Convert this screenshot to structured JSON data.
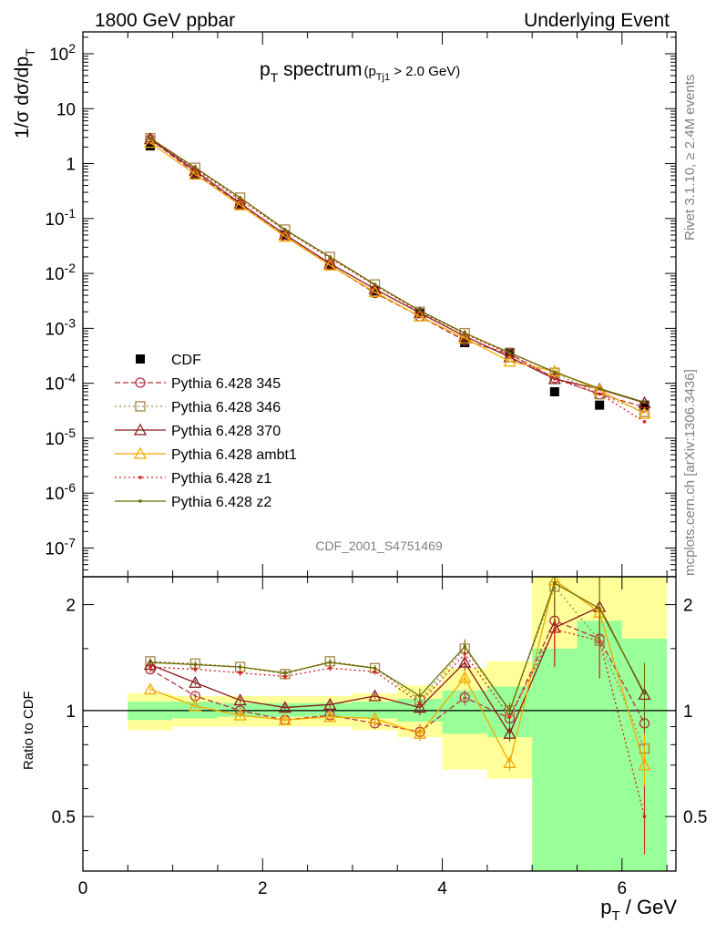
{
  "header": {
    "left": "1800 GeV ppbar",
    "right": "Underlying Event"
  },
  "title": {
    "main": "p",
    "main_sub": "T",
    "main_rest": " spectrum",
    "cut_prefix": "(p",
    "cut_sub": "Tj1",
    "cut_rest": " > 2.0 GeV)"
  },
  "side": {
    "rivet": "Rivet 3.1.10, ≥ 2.4M events",
    "mcplots": "mcplots.cern.ch [arXiv:1306.3436]"
  },
  "analysis_id": "CDF_2001_S4751469",
  "colors": {
    "band_outer": "#ffff99",
    "band_inner": "#99ff99"
  },
  "chart_data": [
    {
      "type": "scatter",
      "ylabel": "1/σ dσ/dp",
      "ylabel_sub": "T",
      "yscale": "log",
      "xlim": [
        0,
        6.6
      ],
      "ylim": [
        3e-08,
        250
      ],
      "y_ticks": [
        {
          "label": "10",
          "exp": "-7"
        },
        {
          "label": "10",
          "exp": "-6"
        },
        {
          "label": "10",
          "exp": "-5"
        },
        {
          "label": "10",
          "exp": "-4"
        },
        {
          "label": "10",
          "exp": "-3"
        },
        {
          "label": "10",
          "exp": "-2"
        },
        {
          "label": "10",
          "exp": "-1"
        },
        {
          "label": "1",
          "exp": ""
        },
        {
          "label": "10",
          "exp": ""
        },
        {
          "label": "10",
          "exp": "2"
        }
      ],
      "x": [
        0.75,
        1.25,
        1.75,
        2.25,
        2.75,
        3.25,
        3.75,
        4.25,
        4.75,
        5.25,
        5.75,
        6.25
      ],
      "series": [
        {
          "name": "CDF",
          "color": "#000000",
          "style": "data",
          "values": [
            2.1,
            0.62,
            0.18,
            0.05,
            0.0145,
            0.0048,
            0.0019,
            0.00055,
            0.00036,
            7e-05,
            4e-05,
            4e-05
          ]
        },
        {
          "name": "Pythia 6.428 345",
          "color": "#b2323e",
          "style": "dash",
          "marker": "circle",
          "values": [
            2.75,
            0.68,
            0.18,
            0.047,
            0.0142,
            0.0044,
            0.00165,
            0.0006,
            0.00034,
            0.000125,
            6.3e-05,
            3.7e-05
          ]
        },
        {
          "name": "Pythia 6.428 346",
          "color": "#a58547",
          "style": "dot",
          "marker": "square",
          "values": [
            2.9,
            0.84,
            0.24,
            0.063,
            0.02,
            0.0063,
            0.002,
            0.00082,
            0.00036,
            0.000155,
            6.3e-05,
            3e-05
          ]
        },
        {
          "name": "Pythia 6.428 370",
          "color": "#8b1a1a",
          "style": "solid",
          "marker": "triangle",
          "values": [
            2.8,
            0.74,
            0.19,
            0.051,
            0.0152,
            0.0052,
            0.0019,
            0.00072,
            0.0003,
            0.00012,
            7.8e-05,
            4.4e-05
          ]
        },
        {
          "name": "Pythia 6.428 ambt1",
          "color": "#f4a800",
          "style": "solid",
          "marker": "triangle",
          "values": [
            2.4,
            0.64,
            0.175,
            0.047,
            0.014,
            0.0046,
            0.00165,
            0.00066,
            0.00025,
            0.000165,
            7.5e-05,
            2.8e-05
          ]
        },
        {
          "name": "Pythia 6.428 z1",
          "color": "#d62020",
          "style": "dot",
          "marker": "dot",
          "values": [
            2.8,
            0.8,
            0.22,
            0.061,
            0.019,
            0.0061,
            0.002,
            0.0008,
            0.00034,
            0.00012,
            6.4e-05,
            2e-05
          ]
        },
        {
          "name": "Pythia 6.428 z2",
          "color": "#6b6b00",
          "style": "solid",
          "marker": "dot",
          "values": [
            2.9,
            0.84,
            0.24,
            0.063,
            0.02,
            0.0063,
            0.0021,
            0.00082,
            0.00036,
            0.00016,
            8e-05,
            4.5e-05
          ]
        }
      ]
    },
    {
      "type": "line",
      "ylabel": "Ratio to CDF",
      "xlabel": "p",
      "xlabel_sub": "T",
      "xlabel_rest": " / GeV",
      "yscale": "log",
      "xlim": [
        0,
        6.6
      ],
      "ylim": [
        0.35,
        2.4
      ],
      "x_ticks": [
        "0",
        "2",
        "4",
        "6"
      ],
      "y_ticks": [
        "0.5",
        "1",
        "2"
      ],
      "x": [
        0.75,
        1.25,
        1.75,
        2.25,
        2.75,
        3.25,
        3.75,
        4.25,
        4.75,
        5.25,
        5.75,
        6.25
      ],
      "bands": {
        "edges": [
          0.5,
          1.0,
          1.5,
          2.0,
          2.5,
          3.0,
          3.5,
          4.0,
          4.5,
          5.0,
          5.5,
          6.0,
          6.5
        ],
        "inner_lo": [
          0.94,
          0.95,
          0.96,
          0.96,
          0.96,
          0.95,
          0.93,
          0.86,
          0.84,
          0.3,
          0.3,
          0.3
        ],
        "inner_hi": [
          1.06,
          1.06,
          1.05,
          1.05,
          1.05,
          1.06,
          1.08,
          1.14,
          1.17,
          1.5,
          1.8,
          1.6
        ],
        "outer_lo": [
          0.88,
          0.9,
          0.9,
          0.9,
          0.9,
          0.88,
          0.84,
          0.68,
          0.64,
          0.3,
          0.3,
          0.3
        ],
        "outer_hi": [
          1.12,
          1.1,
          1.1,
          1.1,
          1.1,
          1.12,
          1.18,
          1.32,
          1.38,
          3.0,
          3.0,
          3.0
        ]
      },
      "series": [
        {
          "name": "Pythia 6.428 345",
          "values": [
            1.31,
            1.1,
            1.0,
            0.94,
            0.97,
            0.92,
            0.87,
            1.09,
            0.95,
            1.8,
            1.6,
            0.92
          ]
        },
        {
          "name": "Pythia 6.428 346",
          "values": [
            1.38,
            1.36,
            1.33,
            1.27,
            1.38,
            1.32,
            1.07,
            1.5,
            1.0,
            2.25,
            1.58,
            0.78
          ]
        },
        {
          "name": "Pythia 6.428 370",
          "values": [
            1.35,
            1.2,
            1.07,
            1.02,
            1.04,
            1.1,
            1.02,
            1.37,
            0.86,
            1.72,
            1.97,
            1.11
          ]
        },
        {
          "name": "Pythia 6.428 ambt1",
          "values": [
            1.15,
            1.03,
            0.97,
            0.94,
            0.96,
            0.95,
            0.86,
            1.24,
            0.71,
            2.35,
            1.9,
            0.7
          ]
        },
        {
          "name": "Pythia 6.428 z1",
          "values": [
            1.33,
            1.31,
            1.28,
            1.25,
            1.32,
            1.29,
            1.05,
            1.45,
            0.96,
            1.7,
            1.58,
            0.5
          ]
        },
        {
          "name": "Pythia 6.428 z2",
          "values": [
            1.37,
            1.35,
            1.33,
            1.28,
            1.37,
            1.32,
            1.1,
            1.52,
            1.0,
            2.3,
            1.95,
            1.12
          ]
        }
      ]
    }
  ]
}
